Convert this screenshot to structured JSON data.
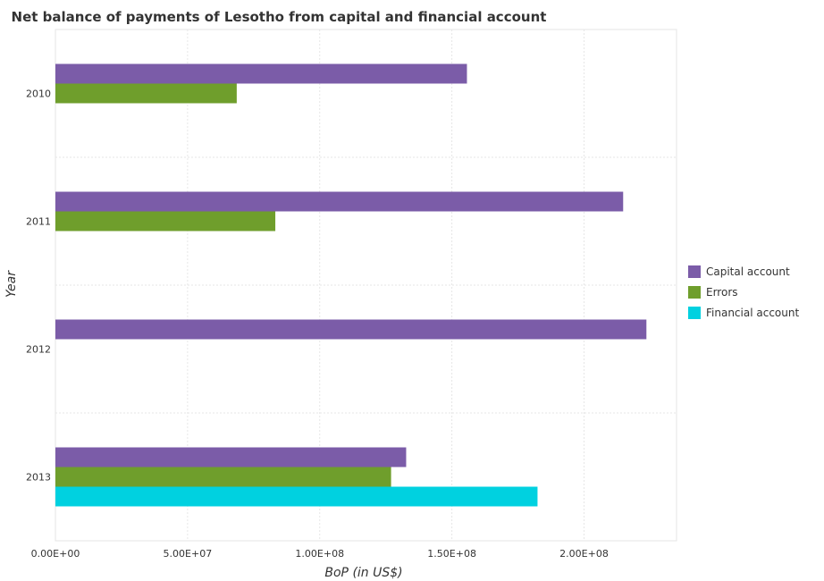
{
  "chart_data": {
    "type": "bar",
    "orientation": "horizontal",
    "title": "Net balance of payments of Lesotho from capital and financial account",
    "xlabel": "BoP (in US$)",
    "ylabel": "Year",
    "categories": [
      "2010",
      "2011",
      "2012",
      "2013"
    ],
    "series": [
      {
        "name": "Capital account",
        "color": "#7b5ca8",
        "values": [
          155700000,
          214800000,
          223600000,
          132700000
        ]
      },
      {
        "name": "Errors",
        "color": "#6f9e2c",
        "values": [
          68600000,
          83200000,
          0,
          127000000
        ]
      },
      {
        "name": "Financial account",
        "color": "#00d1e0",
        "values": [
          0,
          0,
          0,
          182400000
        ]
      }
    ],
    "xlim": [
      0,
      235000000
    ],
    "xticks": [
      0,
      50000000,
      100000000,
      150000000,
      200000000
    ],
    "xtick_labels": [
      "0.00E+00",
      "5.00E+07",
      "1.00E+08",
      "1.50E+08",
      "2.00E+08"
    ],
    "grid": true,
    "legend_position": "right"
  }
}
